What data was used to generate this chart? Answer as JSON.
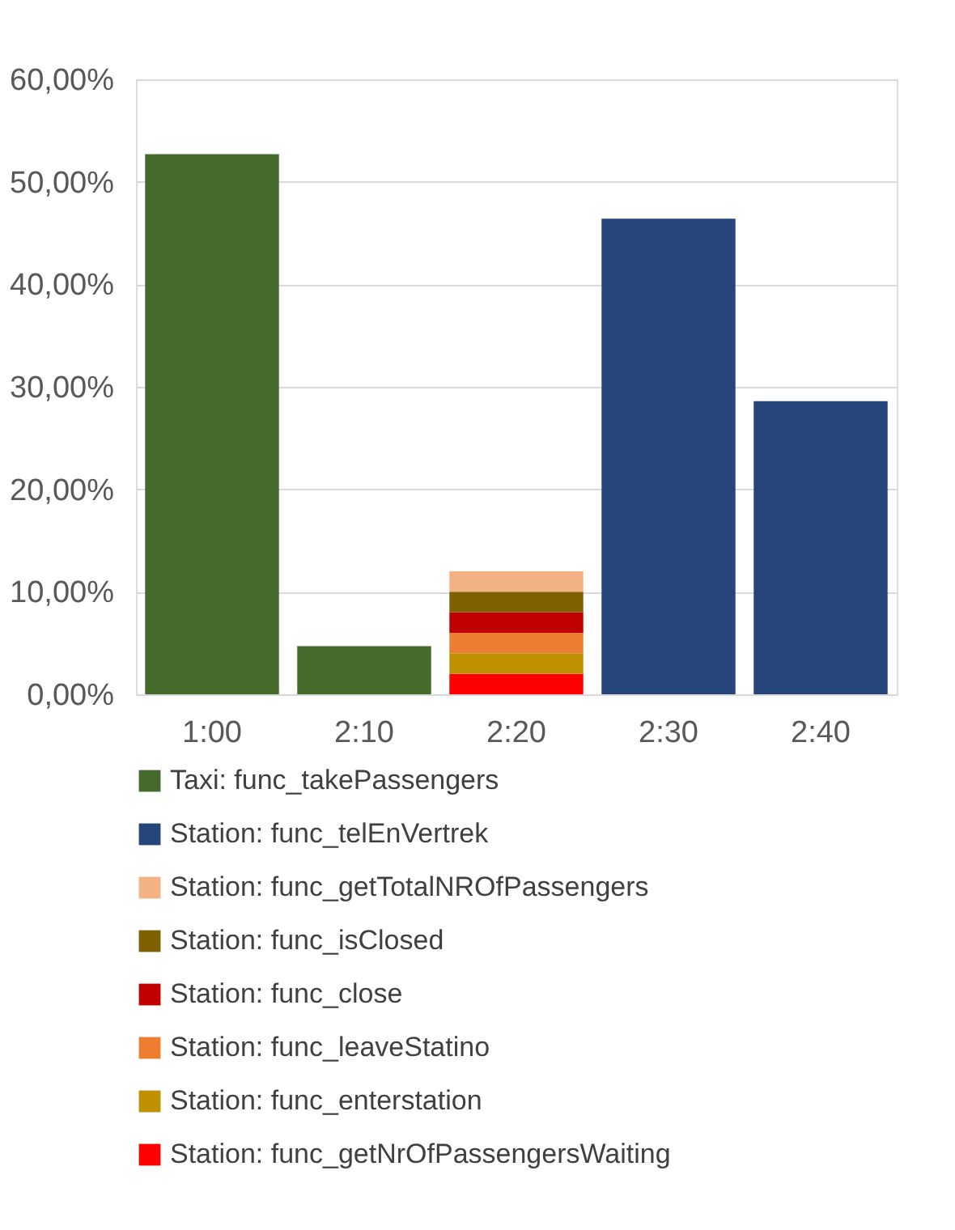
{
  "chart_data": {
    "type": "bar",
    "stacked": true,
    "categories": [
      "1:00",
      "2:10",
      "2:20",
      "2:30",
      "2:40"
    ],
    "series": [
      {
        "name": "Taxi: func_takePassengers",
        "color": "#466a2c",
        "values": [
          52.7,
          4.7,
          null,
          null,
          null
        ]
      },
      {
        "name": "Station: func_telEnVertrek",
        "color": "#26457a",
        "values": [
          null,
          null,
          null,
          46.4,
          28.6
        ]
      },
      {
        "name": "Station: func_getNrOfPassengersWaiting",
        "color": "#ff0000",
        "values": [
          null,
          null,
          2.0,
          null,
          null
        ]
      },
      {
        "name": "Station: func_enterstation",
        "color": "#bf9000",
        "values": [
          null,
          null,
          2.0,
          null,
          null
        ]
      },
      {
        "name": "Station: func_leaveStatino",
        "color": "#ed7d31",
        "values": [
          null,
          null,
          2.0,
          null,
          null
        ]
      },
      {
        "name": "Station: func_close",
        "color": "#c00000",
        "values": [
          null,
          null,
          2.0,
          null,
          null
        ]
      },
      {
        "name": "Station: func_isClosed",
        "color": "#7f6000",
        "values": [
          null,
          null,
          2.0,
          null,
          null
        ]
      },
      {
        "name": "Station: func_getTotalNROfPassengers",
        "color": "#f4b183",
        "values": [
          null,
          null,
          2.0,
          null,
          null
        ]
      }
    ],
    "ylim": [
      0,
      60
    ],
    "yticks": [
      {
        "value": 0,
        "label": "0,00%"
      },
      {
        "value": 10,
        "label": "10,00%"
      },
      {
        "value": 20,
        "label": "20,00%"
      },
      {
        "value": 30,
        "label": "30,00%"
      },
      {
        "value": 40,
        "label": "40,00%"
      },
      {
        "value": 50,
        "label": "50,00%"
      },
      {
        "value": 60,
        "label": "60,00%"
      }
    ],
    "grid": "y",
    "legend": "bottom"
  }
}
